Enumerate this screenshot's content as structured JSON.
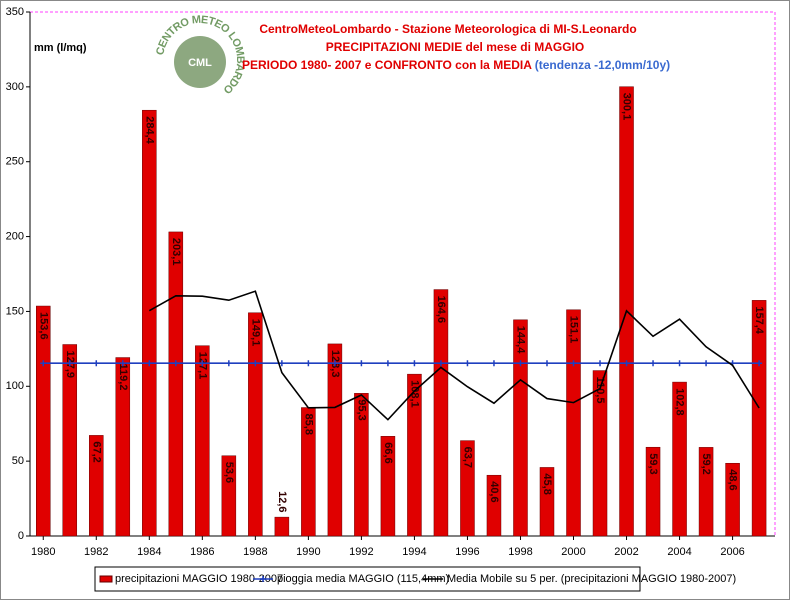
{
  "chart_data": {
    "type": "bar",
    "title": "CentroMeteoLombardo - Stazione Meteorologica di MI-S.Leonardo",
    "subtitle": "PRECIPITAZIONI MEDIE del mese di MAGGIO",
    "period": "PERIODO 1980- 2007 e CONFRONTO con la MEDIA",
    "trend": "(tendenza -12,0mm/10y)",
    "y_label": "mm (l/mq)",
    "logo": {
      "ring": "CENTRO METEO LOMBARDO",
      "initials": "CML"
    },
    "x": [
      1980,
      1981,
      1982,
      1983,
      1984,
      1985,
      1986,
      1987,
      1988,
      1989,
      1990,
      1991,
      1992,
      1993,
      1994,
      1995,
      1996,
      1997,
      1998,
      1999,
      2000,
      2001,
      2002,
      2003,
      2004,
      2005,
      2006,
      2007
    ],
    "xlim": [
      1979.5,
      2007.6
    ],
    "xticks": [
      1980,
      1982,
      1984,
      1986,
      1988,
      1990,
      1992,
      1994,
      1996,
      1998,
      2000,
      2002,
      2004,
      2006
    ],
    "ylim": [
      0,
      350
    ],
    "yticks": [
      0,
      50,
      100,
      150,
      200,
      250,
      300,
      350
    ],
    "grid": false,
    "legend": "bottom",
    "series": [
      {
        "name": "precipitazioni MAGGIO 1980-2007",
        "type": "bar",
        "color": "#e00000",
        "values": [
          153.6,
          127.9,
          67.2,
          119.2,
          284.4,
          203.1,
          127.1,
          53.6,
          149.1,
          12.6,
          85.8,
          128.3,
          95.3,
          66.6,
          108.1,
          164.6,
          63.7,
          40.6,
          144.4,
          45.8,
          151.1,
          110.5,
          300.1,
          59.3,
          102.8,
          59.2,
          48.6,
          157.4
        ],
        "value_labels": [
          "153,6",
          "127,9",
          "67,2",
          "119,2",
          "284,4",
          "203,1",
          "127,1",
          "53,6",
          "149,1",
          "12,6",
          "85,8",
          "128,3",
          "95,3",
          "66,6",
          "108,1",
          "164,6",
          "63,7",
          "40,6",
          "144,4",
          "45,8",
          "151,1",
          "110,5",
          "300,1",
          "59,3",
          "102,8",
          "59,2",
          "48,6",
          "157,4"
        ]
      },
      {
        "name": "pioggia media MAGGIO (115,4mm)",
        "type": "line",
        "color": "#1f3fbf",
        "markers": true,
        "values": [
          115.4,
          115.4,
          115.4,
          115.4,
          115.4,
          115.4,
          115.4,
          115.4,
          115.4,
          115.4,
          115.4,
          115.4,
          115.4,
          115.4,
          115.4,
          115.4,
          115.4,
          115.4,
          115.4,
          115.4,
          115.4,
          115.4,
          115.4,
          115.4,
          115.4,
          115.4,
          115.4,
          115.4
        ]
      },
      {
        "name": "Media Mobile su 5 per. (precipitazioni MAGGIO 1980-2007)",
        "type": "line",
        "color": "#000000",
        "markers": false,
        "values": [
          null,
          null,
          null,
          null,
          150.5,
          160.4,
          160.2,
          157.5,
          163.5,
          109.1,
          85.6,
          85.9,
          94.2,
          77.7,
          96.8,
          112.6,
          99.7,
          88.7,
          104.3,
          91.8,
          89.1,
          98.5,
          150.4,
          133.4,
          144.8,
          126.4,
          114,
          85.5
        ]
      }
    ]
  }
}
